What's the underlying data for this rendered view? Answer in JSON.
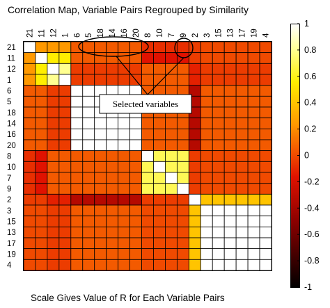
{
  "chart_data": {
    "type": "heatmap",
    "title": "Correlation Map, Variable Pairs Regrouped by Similarity",
    "footer": "Scale Gives Value of R for Each Variable Pairs",
    "variables": [
      "21",
      "11",
      "12",
      "1",
      "6",
      "5",
      "18",
      "14",
      "16",
      "20",
      "8",
      "10",
      "7",
      "9",
      "2",
      "3",
      "15",
      "13",
      "17",
      "19",
      "4"
    ],
    "groups": [
      [
        0,
        0
      ],
      [
        1,
        1
      ],
      [
        2,
        3
      ],
      [
        4,
        9
      ],
      [
        10,
        13
      ],
      [
        14,
        14
      ],
      [
        15,
        20
      ]
    ],
    "block_values": [
      [
        1.0,
        0.25,
        0.25,
        0.05,
        -0.1,
        -0.05,
        0.0
      ],
      [
        0.25,
        1.0,
        0.55,
        0.05,
        -0.2,
        -0.05,
        0.0
      ],
      [
        0.25,
        0.55,
        0.8,
        -0.05,
        0.05,
        -0.15,
        -0.05
      ],
      [
        0.05,
        0.05,
        -0.05,
        1.0,
        0.05,
        -0.35,
        0.05
      ],
      [
        -0.1,
        -0.2,
        0.05,
        0.05,
        0.7,
        -0.05,
        0.0
      ],
      [
        -0.05,
        -0.05,
        -0.15,
        -0.35,
        -0.05,
        1.0,
        0.4
      ],
      [
        0.0,
        0.0,
        -0.05,
        0.05,
        0.0,
        0.4,
        1.0
      ]
    ],
    "clim": [
      -1,
      1
    ],
    "colorbar_ticks": [
      "1",
      "0.8",
      "0.6",
      "0.4",
      "0.2",
      "0",
      "-0.2",
      "-0.4",
      "-0.6",
      "-0.8",
      "-1"
    ],
    "colormap": [
      "#000000",
      "#cc0000",
      "#ff9900",
      "#ffff00",
      "#ffffff"
    ],
    "grid": true,
    "legend": "right",
    "annotation": "Selected variables"
  }
}
